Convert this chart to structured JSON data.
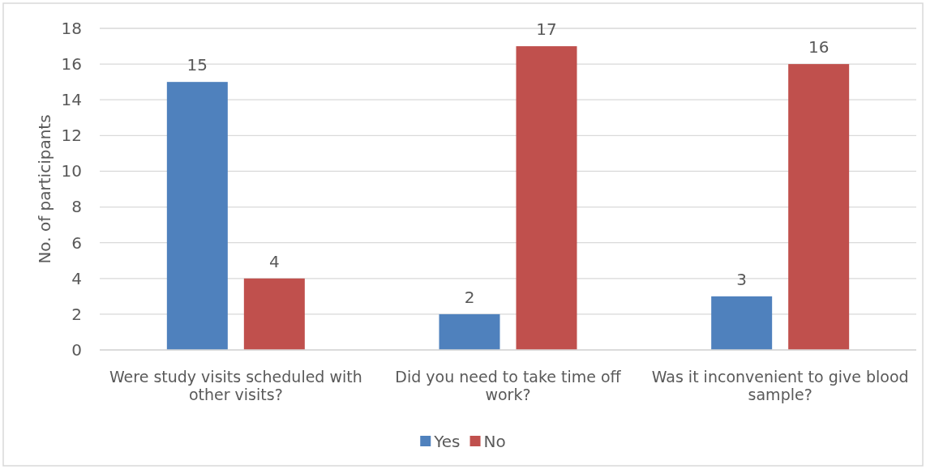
{
  "chart_data": {
    "type": "bar",
    "ylabel": "No. of participants",
    "categories": [
      "Were study visits scheduled with other visits?",
      "Did you need to take time off work?",
      "Was it inconvenient to give blood sample?"
    ],
    "series": [
      {
        "name": "Yes",
        "color": "#4f81bd",
        "values": [
          15,
          2,
          3
        ]
      },
      {
        "name": "No",
        "color": "#c0504d",
        "values": [
          4,
          17,
          16
        ]
      }
    ],
    "ylim": [
      0,
      18
    ],
    "yticks": [
      0,
      2,
      4,
      6,
      8,
      10,
      12,
      14,
      16,
      18
    ],
    "grid": "y",
    "legend": "bottom",
    "data_labels": true
  }
}
